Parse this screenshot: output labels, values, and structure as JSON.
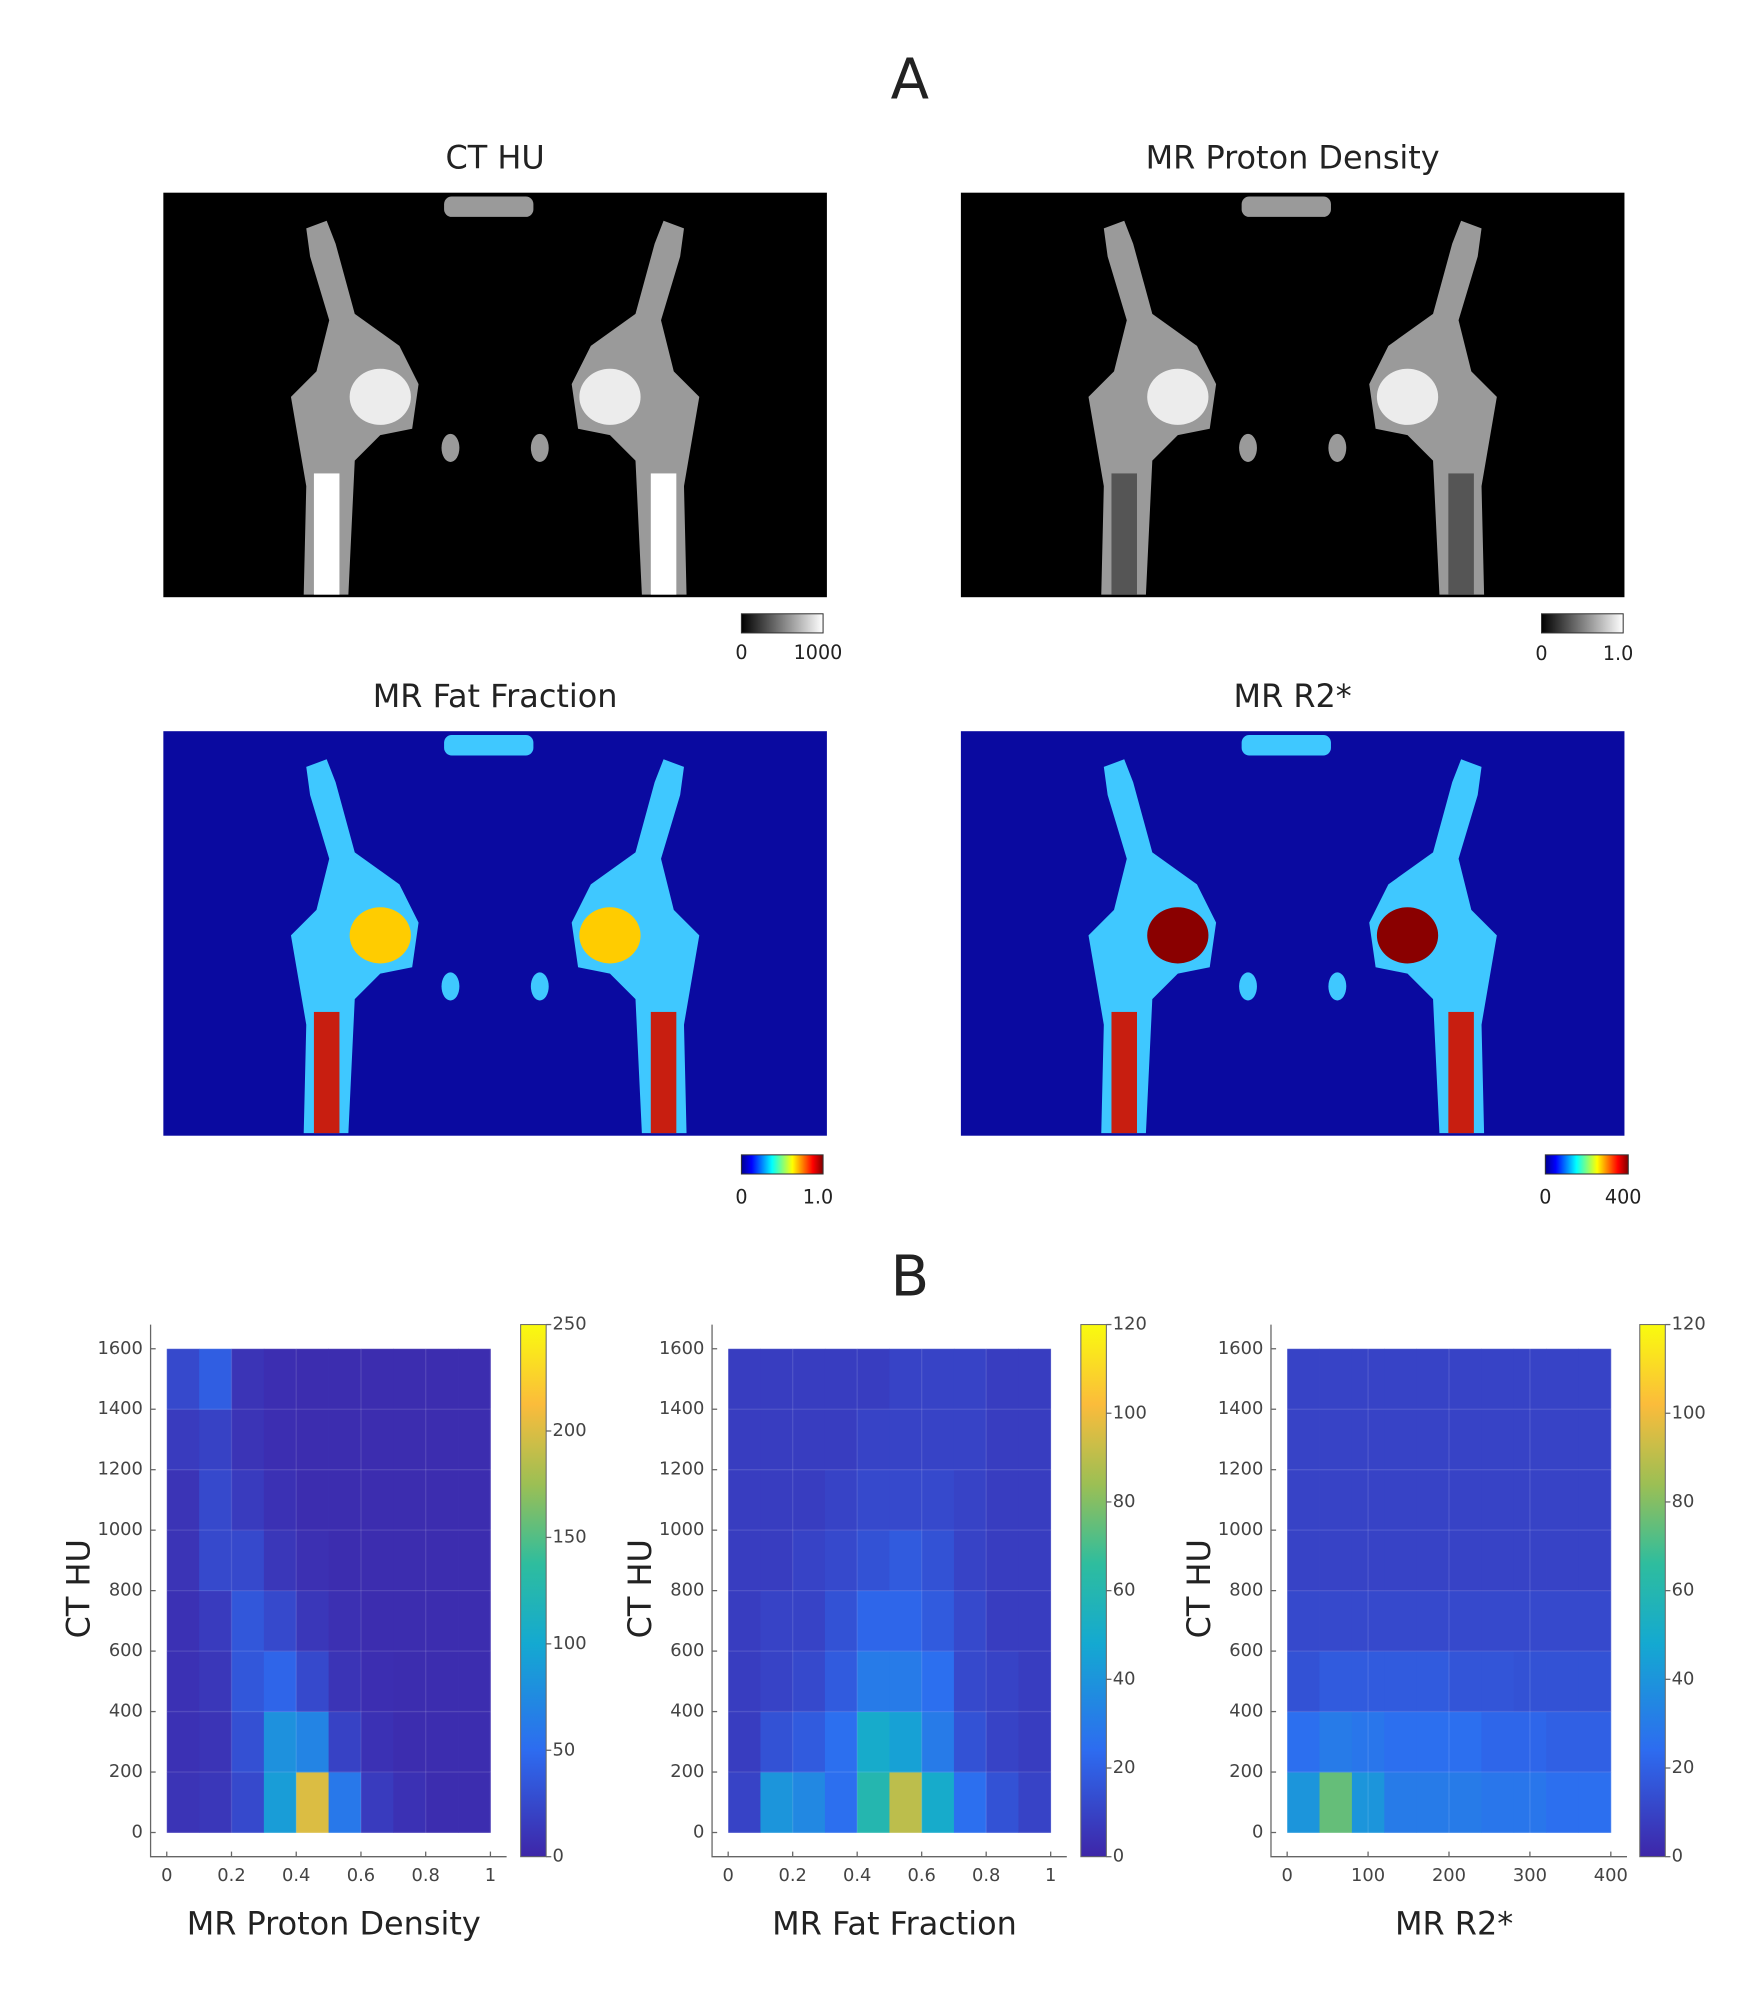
{
  "panel_a": {
    "label": "A",
    "images": [
      {
        "title": "CT HU",
        "colormap": "gray",
        "colorbar": {
          "min_label": "0",
          "max_label": "1000"
        }
      },
      {
        "title": "MR Proton Density",
        "colormap": "gray",
        "colorbar": {
          "min_label": "0",
          "max_label": "1.0"
        }
      },
      {
        "title": "MR Fat Fraction",
        "colormap": "jet",
        "colorbar": {
          "min_label": "0",
          "max_label": "1.0"
        }
      },
      {
        "title": "MR R2*",
        "colormap": "jet",
        "colorbar": {
          "min_label": "0",
          "max_label": "400"
        }
      }
    ]
  },
  "panel_b": {
    "label": "B"
  },
  "chart_data": [
    {
      "type": "heatmap",
      "xlabel": "MR Proton Density",
      "ylabel": "CT HU",
      "xlim": [
        -0.05,
        1.05
      ],
      "ylim": [
        -80,
        1680
      ],
      "xticks": [
        0,
        0.2,
        0.4,
        0.6,
        0.8,
        1
      ],
      "yticks": [
        0,
        200,
        400,
        600,
        800,
        1000,
        1200,
        1400,
        1600
      ],
      "x_edges": [
        0,
        0.1,
        0.2,
        0.3,
        0.4,
        0.5,
        0.6,
        0.7,
        0.8,
        0.9,
        1
      ],
      "y_edges": [
        0,
        200,
        400,
        600,
        800,
        1000,
        1200,
        1400,
        1600
      ],
      "counts": [
        [
          10,
          12,
          25,
          90,
          200,
          60,
          15,
          8,
          5,
          5
        ],
        [
          8,
          10,
          30,
          80,
          70,
          20,
          8,
          5,
          5,
          5
        ],
        [
          8,
          12,
          35,
          45,
          25,
          10,
          6,
          5,
          5,
          5
        ],
        [
          8,
          15,
          35,
          25,
          12,
          7,
          5,
          5,
          5,
          5
        ],
        [
          10,
          25,
          25,
          12,
          7,
          5,
          5,
          5,
          5,
          5
        ],
        [
          10,
          25,
          15,
          8,
          5,
          5,
          5,
          5,
          5,
          5
        ],
        [
          15,
          20,
          10,
          6,
          5,
          5,
          5,
          5,
          5,
          5
        ],
        [
          25,
          40,
          10,
          6,
          5,
          5,
          5,
          5,
          5,
          5
        ]
      ],
      "clim": [
        0,
        250
      ],
      "colorbar_ticks": [
        0,
        50,
        100,
        150,
        200,
        250
      ],
      "colormap": "parula",
      "grid": true
    },
    {
      "type": "heatmap",
      "xlabel": "MR Fat Fraction",
      "ylabel": "CT HU",
      "xlim": [
        -0.05,
        1.05
      ],
      "ylim": [
        -80,
        1680
      ],
      "xticks": [
        0,
        0.2,
        0.4,
        0.6,
        0.8,
        1
      ],
      "yticks": [
        0,
        200,
        400,
        600,
        800,
        1000,
        1200,
        1400,
        1600
      ],
      "x_edges": [
        0,
        0.1,
        0.2,
        0.3,
        0.4,
        0.5,
        0.6,
        0.7,
        0.8,
        0.9,
        1
      ],
      "y_edges": [
        0,
        200,
        400,
        600,
        800,
        1000,
        1200,
        1400,
        1600
      ],
      "counts": [
        [
          10,
          40,
          35,
          25,
          60,
          90,
          50,
          25,
          15,
          10
        ],
        [
          8,
          15,
          18,
          25,
          50,
          45,
          30,
          15,
          10,
          8
        ],
        [
          8,
          10,
          12,
          18,
          30,
          30,
          25,
          12,
          10,
          8
        ],
        [
          8,
          10,
          10,
          15,
          22,
          22,
          18,
          12,
          8,
          8
        ],
        [
          8,
          8,
          10,
          12,
          15,
          18,
          15,
          10,
          8,
          8
        ],
        [
          8,
          8,
          8,
          10,
          12,
          12,
          12,
          10,
          8,
          8
        ],
        [
          8,
          8,
          8,
          8,
          10,
          10,
          10,
          10,
          8,
          8
        ],
        [
          8,
          8,
          8,
          8,
          8,
          10,
          10,
          10,
          8,
          8
        ]
      ],
      "clim": [
        0,
        120
      ],
      "colorbar_ticks": [
        0,
        20,
        40,
        60,
        80,
        100,
        120
      ],
      "colormap": "parula",
      "grid": true
    },
    {
      "type": "heatmap",
      "xlabel": "MR R2*",
      "ylabel": "CT HU",
      "xlim": [
        -20,
        420
      ],
      "ylim": [
        -80,
        1680
      ],
      "xticks": [
        0,
        100,
        200,
        300,
        400
      ],
      "yticks": [
        0,
        200,
        400,
        600,
        800,
        1000,
        1200,
        1400,
        1600
      ],
      "x_edges": [
        0,
        40,
        80,
        120,
        160,
        200,
        240,
        280,
        320,
        360,
        400
      ],
      "y_edges": [
        0,
        200,
        400,
        600,
        800,
        1000,
        1200,
        1400,
        1600
      ],
      "counts": [
        [
          40,
          75,
          40,
          30,
          30,
          30,
          28,
          28,
          25,
          25
        ],
        [
          25,
          30,
          28,
          25,
          25,
          25,
          22,
          22,
          20,
          20
        ],
        [
          15,
          18,
          18,
          18,
          18,
          16,
          16,
          15,
          15,
          15
        ],
        [
          12,
          12,
          12,
          12,
          12,
          12,
          12,
          12,
          12,
          12
        ],
        [
          10,
          10,
          10,
          10,
          10,
          10,
          10,
          10,
          10,
          10
        ],
        [
          10,
          10,
          10,
          10,
          10,
          10,
          10,
          10,
          10,
          10
        ],
        [
          10,
          10,
          10,
          10,
          10,
          10,
          10,
          10,
          10,
          10
        ],
        [
          10,
          10,
          10,
          10,
          10,
          10,
          10,
          10,
          10,
          10
        ]
      ],
      "clim": [
        0,
        120
      ],
      "colorbar_ticks": [
        0,
        20,
        40,
        60,
        80,
        100,
        120
      ],
      "colormap": "parula",
      "grid": true
    }
  ]
}
